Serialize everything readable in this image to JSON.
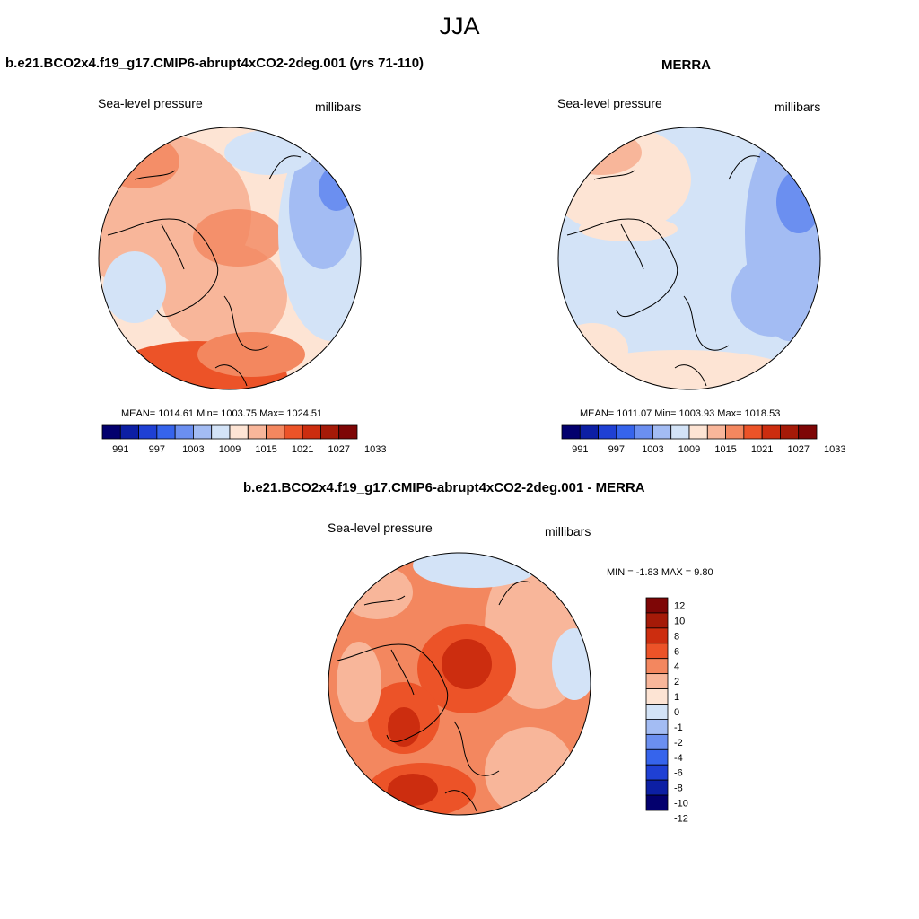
{
  "figure": {
    "title": "JJA"
  },
  "panels": [
    {
      "title": "b.e21.BCO2x4.f19_g17.CMIP6-abrupt4xCO2-2deg.001 (yrs 71-110)",
      "left_label": "Sea-level pressure",
      "right_label": "millibars",
      "stats_text": "MEAN= 1014.61  Min= 1003.75  Max= 1024.51"
    },
    {
      "title": "MERRA",
      "left_label": "Sea-level pressure",
      "right_label": "millibars",
      "stats_text": "MEAN= 1011.07  Min= 1003.93  Max= 1018.53"
    },
    {
      "title": "b.e21.BCO2x4.f19_g17.CMIP6-abrupt4xCO2-2deg.001 - MERRA",
      "left_label": "Sea-level pressure",
      "right_label": "millibars",
      "stats_text": "MIN =  -1.83 MAX =   9.80"
    }
  ],
  "chart_data": [
    {
      "type": "heatmap",
      "projection": "north polar stereographic",
      "variable": "Sea-level pressure",
      "units": "millibars",
      "mean": 1014.61,
      "min": 1003.75,
      "max": 1024.51,
      "colorbar": {
        "ticks": [
          991,
          997,
          1003,
          1009,
          1015,
          1021,
          1027,
          1033
        ],
        "colors": [
          "#03006e",
          "#0c1fa4",
          "#1f40d4",
          "#3664ec",
          "#6b8ff0",
          "#a3bcf3",
          "#d3e3f7",
          "#fde4d4",
          "#f8b69a",
          "#f3875f",
          "#ec5328",
          "#cc2d0f",
          "#a51a08",
          "#7e0606"
        ]
      }
    },
    {
      "type": "heatmap",
      "projection": "north polar stereographic",
      "variable": "Sea-level pressure",
      "units": "millibars",
      "mean": 1011.07,
      "min": 1003.93,
      "max": 1018.53,
      "colorbar": {
        "ticks": [
          991,
          997,
          1003,
          1009,
          1015,
          1021,
          1027,
          1033
        ],
        "colors": [
          "#03006e",
          "#0c1fa4",
          "#1f40d4",
          "#3664ec",
          "#6b8ff0",
          "#a3bcf3",
          "#d3e3f7",
          "#fde4d4",
          "#f8b69a",
          "#f3875f",
          "#ec5328",
          "#cc2d0f",
          "#a51a08",
          "#7e0606"
        ]
      }
    },
    {
      "type": "heatmap",
      "projection": "north polar stereographic",
      "variable": "Sea-level pressure difference",
      "units": "millibars",
      "min": -1.83,
      "max": 9.8,
      "colorbar": {
        "ticks": [
          12,
          10,
          8,
          6,
          4,
          2,
          1,
          0,
          -1,
          -2,
          -4,
          -6,
          -8,
          -10,
          -12
        ],
        "colors": [
          "#7e0606",
          "#a51a08",
          "#cc2d0f",
          "#ec5328",
          "#f3875f",
          "#f8b69a",
          "#fde4d4",
          "#d3e3f7",
          "#a3bcf3",
          "#6b8ff0",
          "#3664ec",
          "#1f40d4",
          "#0c1fa4",
          "#03006e"
        ]
      }
    }
  ]
}
